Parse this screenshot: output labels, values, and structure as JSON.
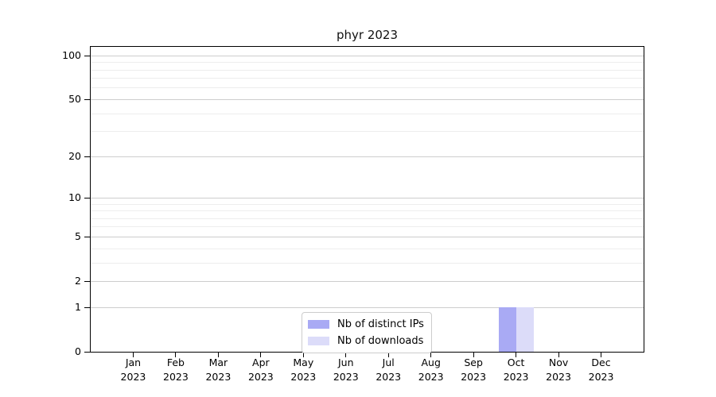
{
  "chart_data": {
    "type": "bar",
    "title": "phyr 2023",
    "categories": [
      "Jan 2023",
      "Feb 2023",
      "Mar 2023",
      "Apr 2023",
      "May 2023",
      "Jun 2023",
      "Jul 2023",
      "Aug 2023",
      "Sep 2023",
      "Oct 2023",
      "Nov 2023",
      "Dec 2023"
    ],
    "series": [
      {
        "name": "Nb of distinct IPs",
        "color": "#a9aaf4",
        "values": [
          0,
          0,
          0,
          0,
          0,
          0,
          0,
          0,
          0,
          1,
          0,
          0
        ]
      },
      {
        "name": "Nb of downloads",
        "color": "#dcdcf9",
        "values": [
          0,
          0,
          0,
          0,
          0,
          0,
          0,
          0,
          0,
          1,
          0,
          0
        ]
      }
    ],
    "xlabel": "",
    "ylabel": "",
    "yscale": "log1p",
    "ylim": [
      0,
      115
    ],
    "yticks": [
      0,
      1,
      2,
      5,
      10,
      20,
      50,
      100
    ],
    "yticks_minor": [
      3,
      4,
      6,
      7,
      8,
      9,
      30,
      40,
      60,
      70,
      80,
      90
    ],
    "grid": "horizontal",
    "legend_position": "bottom-center"
  }
}
